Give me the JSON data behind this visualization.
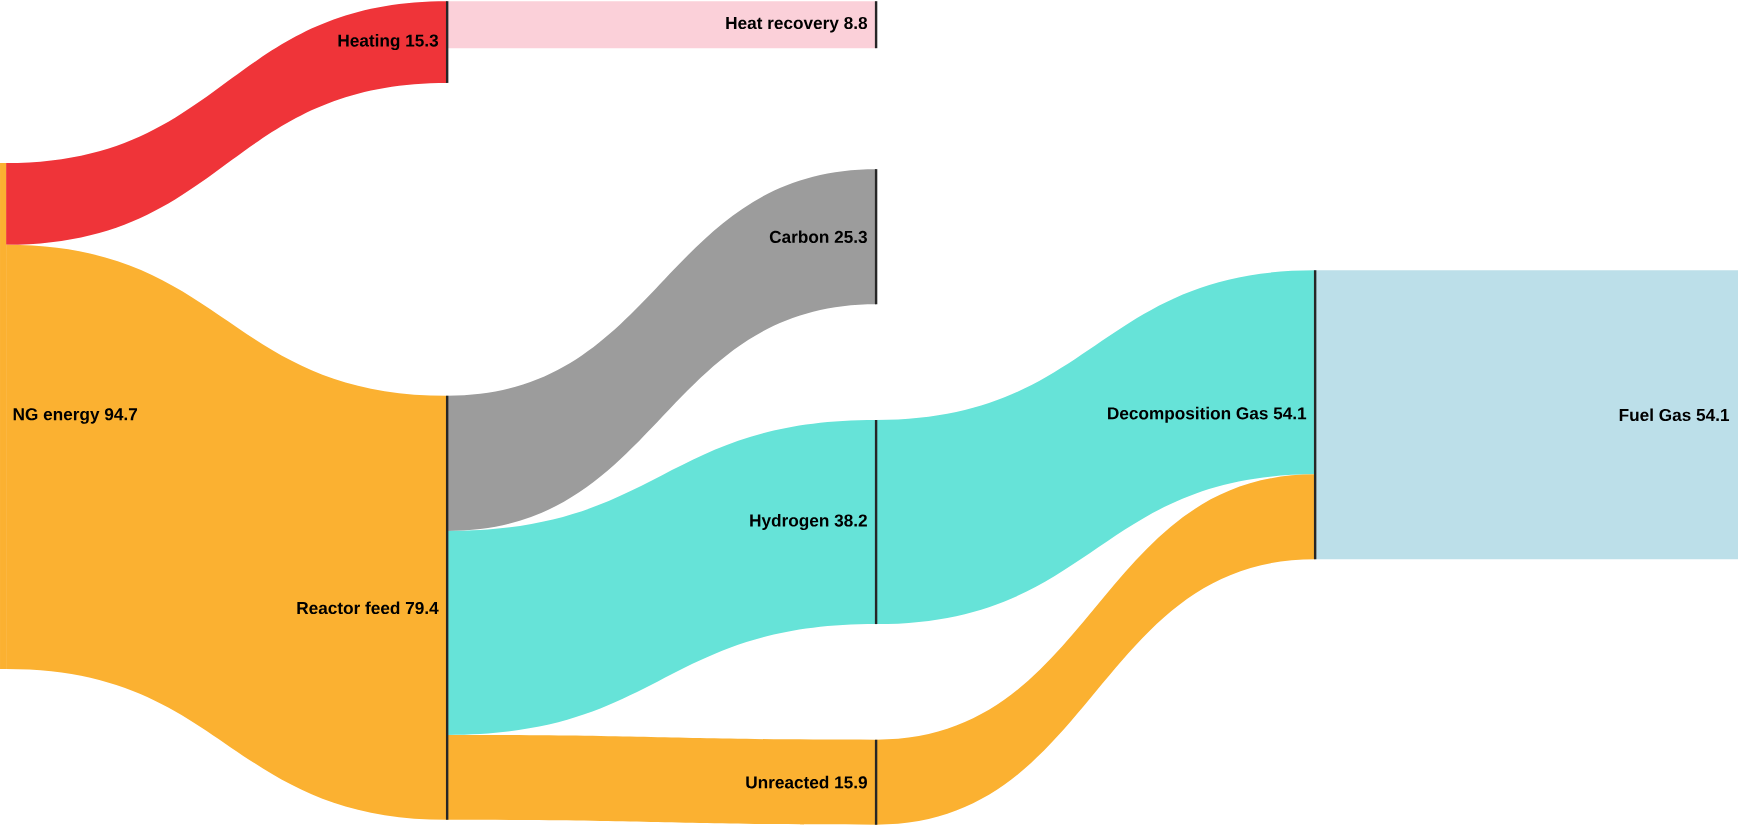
{
  "chart_data": {
    "type": "other",
    "categories": [
      "NG energy",
      "Heating",
      "Reactor feed",
      "Heat recovery",
      "Carbon",
      "Hydrogen",
      "Unreacted",
      "Decomposition Gas",
      "Fuel Gas"
    ],
    "values": [
      94.7,
      15.3,
      79.4,
      8.8,
      25.3,
      38.2,
      15.9,
      54.1,
      54.1
    ],
    "colors": [
      "#fbb131",
      "#ef3439",
      "#fbb131",
      "#fbd0d9",
      "#9c9c9c",
      "#66e3d8",
      "#fbb131",
      "#66e3d8",
      "#bcdfe9"
    ],
    "data_labels": true
  }
}
